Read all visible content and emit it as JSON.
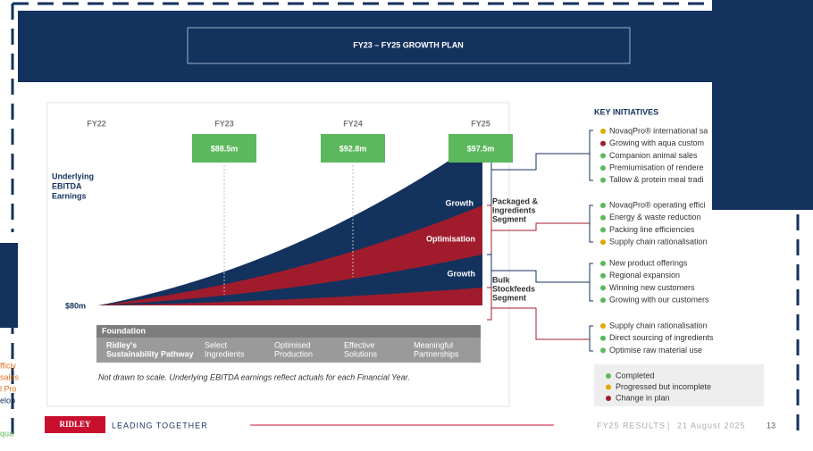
{
  "slide": {
    "title": "FY23 – FY25 GROWTH PLAN",
    "years": [
      "FY22",
      "FY23",
      "FY24",
      "FY25"
    ],
    "earnings": [
      "$88.5m",
      "$92.8m",
      "$97.5m"
    ],
    "axis_label": [
      "Underlying",
      "EBITDA",
      "Earnings"
    ],
    "base": "$80m",
    "layers": [
      "Growth",
      "Optimisation",
      "Growth"
    ],
    "segments": [
      [
        "Packaged &",
        "Ingredients",
        "Segment"
      ],
      [
        "Bulk",
        "Stockfeeds",
        "Segment"
      ]
    ],
    "foundation": {
      "title": "Foundation",
      "items": [
        [
          "Ridley's",
          "Sustainability Pathway"
        ],
        [
          "Select",
          "Ingredients"
        ],
        [
          "Optimised",
          "Production"
        ],
        [
          "Effective",
          "Solutions"
        ],
        [
          "Meaningful",
          "Partnerships"
        ]
      ]
    },
    "note": "Not drawn to scale. Underlying EBITDA earnings reflect actuals for each Financial Year."
  },
  "initiatives": {
    "title": "KEY INITIATIVES",
    "groups": [
      [
        {
          "text": "NovaqPro® international sa",
          "color": "#e0a800"
        },
        {
          "text": "Growing with aqua custom",
          "color": "#a01c2c"
        },
        {
          "text": "Companion animal sales",
          "color": "#5cb85c"
        },
        {
          "text": "Premiumisation of rendere",
          "color": "#5cb85c"
        },
        {
          "text": "Tallow & protein meal tradi",
          "color": "#5cb85c"
        }
      ],
      [
        {
          "text": "NovaqPro® operating effici",
          "color": "#5cb85c"
        },
        {
          "text": "Energy & waste reduction",
          "color": "#5cb85c"
        },
        {
          "text": "Packing line efficiencies",
          "color": "#5cb85c"
        },
        {
          "text": "Supply chain rationalisation",
          "color": "#e0a800"
        }
      ],
      [
        {
          "text": "New product offerings",
          "color": "#5cb85c"
        },
        {
          "text": "Regional expansion",
          "color": "#5cb85c"
        },
        {
          "text": "Winning new customers",
          "color": "#5cb85c"
        },
        {
          "text": "Growing with our customers",
          "color": "#5cb85c"
        }
      ],
      [
        {
          "text": "Supply chain rationalisation",
          "color": "#e0a800"
        },
        {
          "text": "Direct sourcing of ingredients",
          "color": "#5cb85c"
        },
        {
          "text": "Optimise raw material use",
          "color": "#5cb85c"
        }
      ]
    ],
    "legend": [
      {
        "text": "Completed",
        "color": "#5cb85c"
      },
      {
        "text": "Progressed but incomplete",
        "color": "#e0a800"
      },
      {
        "text": "Change in plan",
        "color": "#a01c2c"
      }
    ]
  },
  "footer": {
    "logo": "RIDLEY",
    "tagline": "LEADING TOGETHER",
    "event": "FY25 RESULTS",
    "date": "21 August 2025",
    "page": "13"
  },
  "left_fragments": [
    "fficiy",
    "sales",
    "l Pro",
    "elop",
    "qua"
  ]
}
